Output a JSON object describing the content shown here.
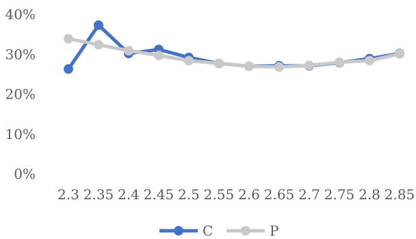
{
  "chart_data": {
    "type": "line",
    "title": "",
    "xlabel": "",
    "ylabel": "",
    "x": [
      "2.3",
      "2.35",
      "2.4",
      "2.45",
      "2.5",
      "2.55",
      "2.6",
      "2.65",
      "2.7",
      "2.75",
      "2.8",
      "2.85"
    ],
    "ylim": [
      0,
      40
    ],
    "y_ticks": [
      "0%",
      "10%",
      "20%",
      "30%",
      "40%"
    ],
    "grid": false,
    "legend_position": "bottom",
    "series": [
      {
        "name": "C",
        "color": "#4472C4",
        "values": [
          26.3,
          37.3,
          30.2,
          31.2,
          29.2,
          27.7,
          27.0,
          27.1,
          27.1,
          27.9,
          28.9,
          30.2
        ]
      },
      {
        "name": "P",
        "color": "#C9C9C9",
        "values": [
          33.9,
          32.4,
          30.9,
          29.7,
          28.4,
          27.7,
          27.0,
          26.8,
          27.2,
          28.0,
          28.4,
          30.1
        ]
      }
    ]
  }
}
